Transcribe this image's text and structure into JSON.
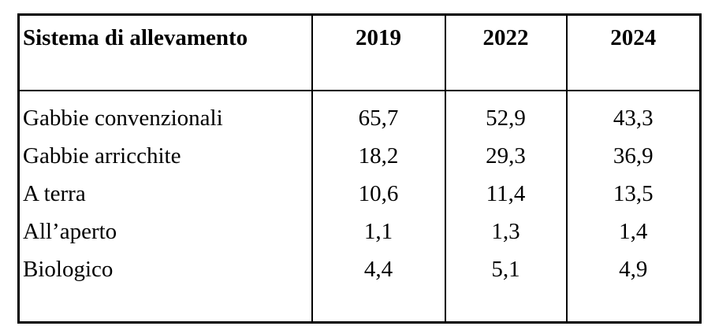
{
  "table": {
    "header": {
      "label": "Sistema di allevamento",
      "years": [
        "2019",
        "2022",
        "2024"
      ]
    },
    "rows": [
      {
        "label": "Gabbie convenzionali",
        "values": [
          "65,7",
          "52,9",
          "43,3"
        ]
      },
      {
        "label": "Gabbie arricchite",
        "values": [
          "18,2",
          "29,3",
          "36,9"
        ]
      },
      {
        "label": "A terra",
        "values": [
          "10,6",
          "11,4",
          "13,5"
        ]
      },
      {
        "label": "All’aperto",
        "values": [
          "1,1",
          "1,3",
          "1,4"
        ]
      },
      {
        "label": "Biologico",
        "values": [
          "4,4",
          "5,1",
          "4,9"
        ]
      }
    ]
  }
}
